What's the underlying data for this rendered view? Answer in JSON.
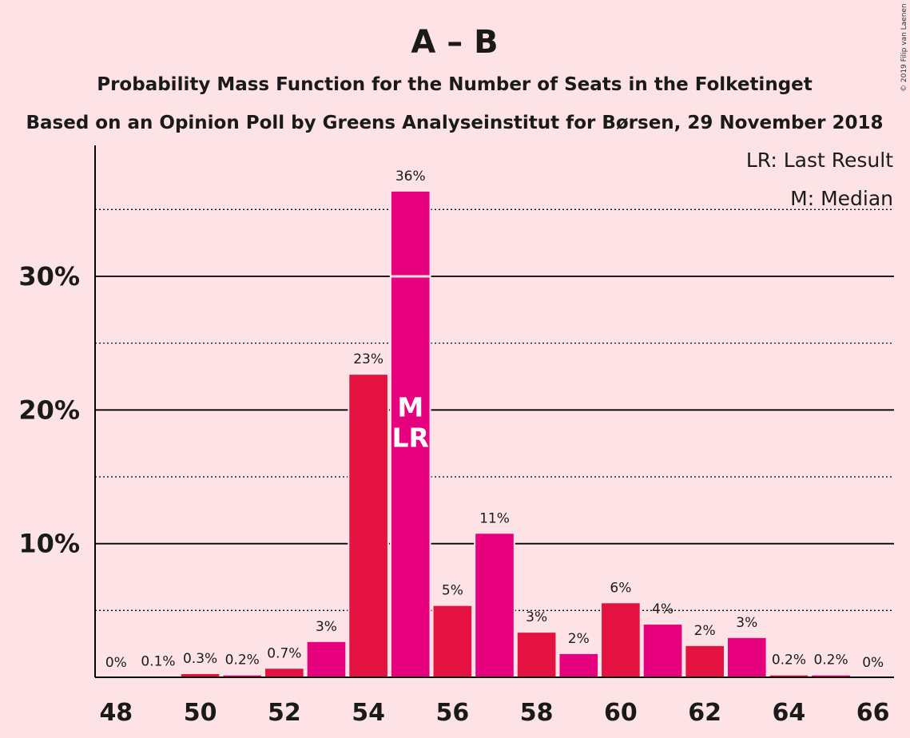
{
  "header": {
    "title": "A – B",
    "subtitle": "Probability Mass Function for the Number of Seats in the Folketinget",
    "source": "Based on an Opinion Poll by Greens Analyseinstitut for Børsen, 29 November 2018"
  },
  "legend": {
    "last_result": "LR: Last Result",
    "median": "M: Median",
    "placement": "top-right"
  },
  "copyright": "© 2019 Filip van Laenen",
  "colors": {
    "background": "#FEE3E6",
    "bar_red": "#E31241",
    "bar_magenta": "#E6007E",
    "axis": "#000000"
  },
  "chart_data": {
    "type": "bar",
    "x": [
      48,
      49,
      50,
      51,
      52,
      53,
      54,
      55,
      56,
      57,
      58,
      59,
      60,
      61,
      62,
      63,
      64,
      65,
      66
    ],
    "values": [
      0,
      0.1,
      0.3,
      0.2,
      0.7,
      2.7,
      22.7,
      36.4,
      5.4,
      10.8,
      3.4,
      1.8,
      5.6,
      4.0,
      2.4,
      3.0,
      0.2,
      0.2,
      0
    ],
    "labels": [
      "0%",
      "0.1%",
      "0.3%",
      "0.2%",
      "0.7%",
      "3%",
      "23%",
      "36%",
      "5%",
      "11%",
      "3%",
      "2%",
      "6%",
      "4%",
      "2%",
      "3%",
      "0.2%",
      "0.2%",
      "0%"
    ],
    "xticks": [
      48,
      50,
      52,
      54,
      56,
      58,
      60,
      62,
      64,
      66
    ],
    "xtick_labels": [
      "48",
      "50",
      "52",
      "54",
      "56",
      "58",
      "60",
      "62",
      "64",
      "66"
    ],
    "yticks": [
      10,
      20,
      30
    ],
    "ytick_labels": [
      "10%",
      "20%",
      "30%"
    ],
    "minor_gridlines": [
      5,
      15,
      25,
      35
    ],
    "ylim": [
      0,
      39.8
    ],
    "xlim": [
      47.5,
      66.5
    ],
    "grid": true,
    "median_seat": 55,
    "median_marker": "M",
    "last_result_seat": 55,
    "last_result_marker": "LR"
  }
}
